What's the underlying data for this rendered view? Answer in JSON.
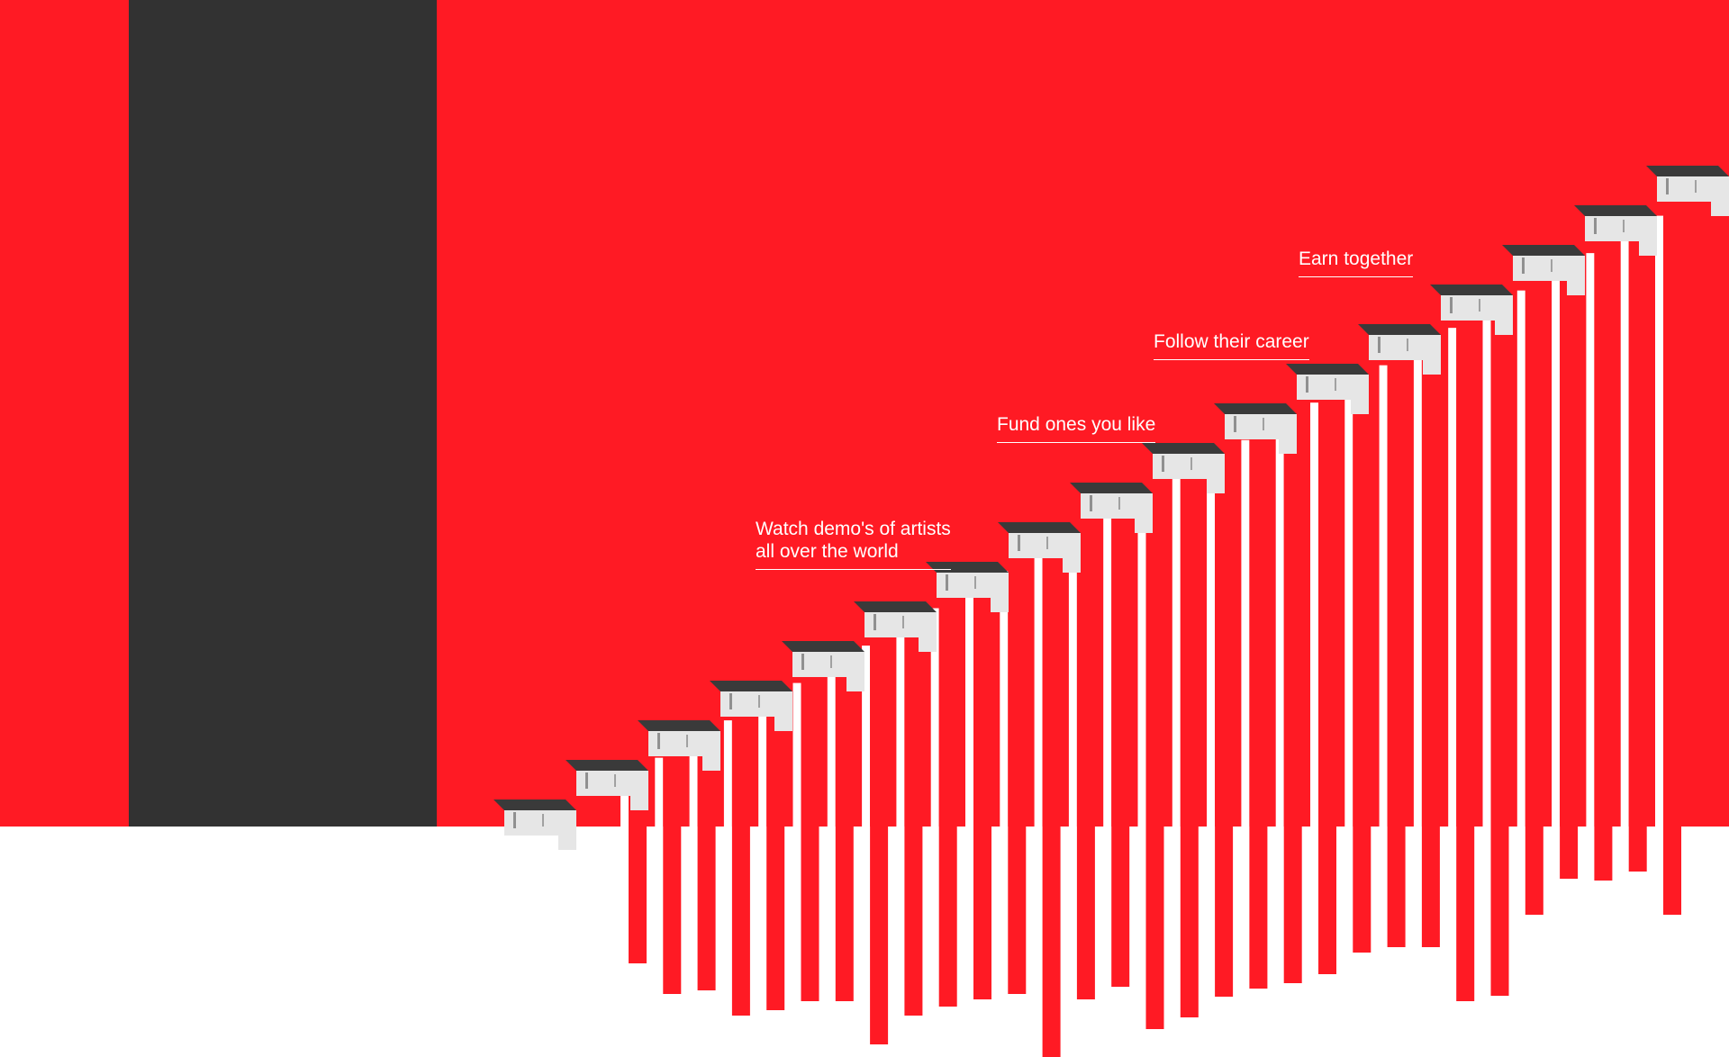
{
  "colors": {
    "red": "#ff1a24",
    "dark": "#323232",
    "white": "#ffffff",
    "stair_top": "#3a3a3a",
    "stair_face": "#e6e6e6"
  },
  "illustration": {
    "subject": "ascending concrete staircase",
    "stripe_count": 31
  },
  "steps": [
    {
      "line1": "Watch demo's of artists",
      "line2": "all over the world"
    },
    {
      "line1": "Fund ones you like"
    },
    {
      "line1": "Follow their career"
    },
    {
      "line1": "Earn together"
    }
  ]
}
